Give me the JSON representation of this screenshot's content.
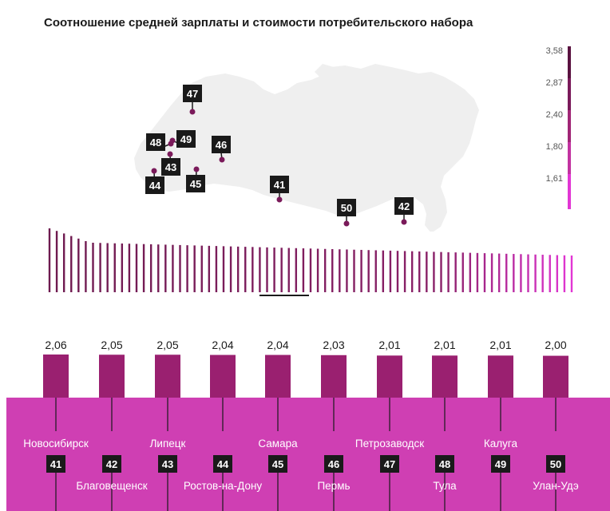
{
  "title": "Соотношение средней зарплаты и стоимости потребительского набора",
  "colors": {
    "dark": "#6e1a4f",
    "mid": "#a02575",
    "light": "#d63ab0",
    "magenta": "#cf3fb3",
    "brightest": "#e236d4",
    "map": "#efefef",
    "marker": "#1a1a1a",
    "dot": "#7a1a5a"
  },
  "scale": {
    "labels": [
      "3,58",
      "2,87",
      "2,40",
      "1,80",
      "1,61"
    ]
  },
  "map_markers": [
    {
      "rank": "47",
      "city": "Петрозаводск"
    },
    {
      "rank": "48",
      "city": "Тула"
    },
    {
      "rank": "49",
      "city": "Калуга"
    },
    {
      "rank": "43",
      "city": "Липецк"
    },
    {
      "rank": "44",
      "city": "Ростов-на-Дону"
    },
    {
      "rank": "45",
      "city": "Самара"
    },
    {
      "rank": "46",
      "city": "Пермь"
    },
    {
      "rank": "41",
      "city": "Новосибирск"
    },
    {
      "rank": "50",
      "city": "Улан-Удэ"
    },
    {
      "rank": "42",
      "city": "Благовещенск"
    }
  ],
  "chart_data": {
    "type": "bar",
    "title": "Соотношение средней зарплаты и стоимости потребительского набора",
    "categories": [
      "Новосибирск",
      "Благовещенск",
      "Липецк",
      "Ростов-на-Дону",
      "Самара",
      "Пермь",
      "Петрозаводск",
      "Тула",
      "Калуга",
      "Улан-Удэ"
    ],
    "ranks": [
      "41",
      "42",
      "43",
      "44",
      "45",
      "46",
      "47",
      "48",
      "49",
      "50"
    ],
    "values": [
      2.06,
      2.05,
      2.05,
      2.04,
      2.04,
      2.03,
      2.01,
      2.01,
      2.01,
      2.0
    ],
    "value_labels": [
      "2,06",
      "2,05",
      "2,05",
      "2,04",
      "2,04",
      "2,03",
      "2,01",
      "2,01",
      "2,01",
      "2,00"
    ],
    "overview": {
      "count": 73,
      "max": 3.58,
      "min": 1.61
    },
    "color_scale": [
      "3,58",
      "2,87",
      "2,40",
      "1,80",
      "1,61"
    ]
  }
}
